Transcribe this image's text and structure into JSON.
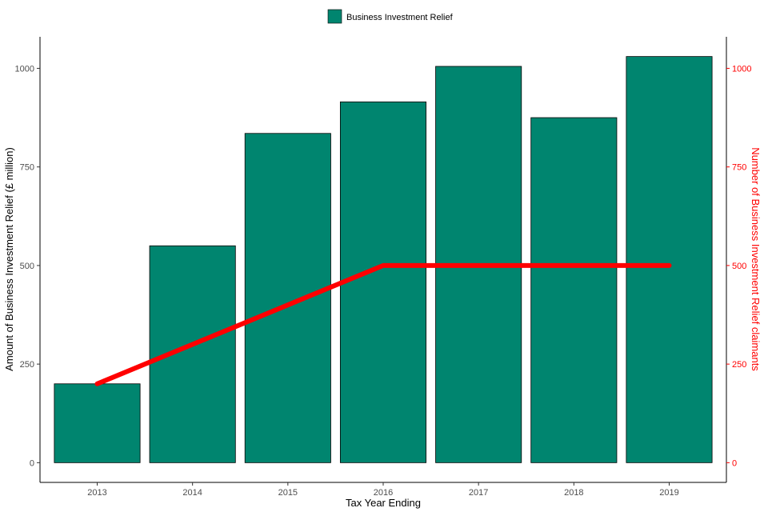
{
  "chart_data": {
    "type": "bar",
    "categories": [
      "2013",
      "2014",
      "2015",
      "2016",
      "2017",
      "2018",
      "2019"
    ],
    "series": [
      {
        "name": "Business Investment Relief",
        "type": "bar",
        "axis": "left",
        "values": [
          200,
          550,
          835,
          915,
          1005,
          875,
          1030
        ]
      },
      {
        "type": "line",
        "axis": "right",
        "values": [
          200,
          300,
          400,
          500,
          500,
          500,
          500
        ]
      }
    ],
    "xlabel": "Tax Year Ending",
    "ylabel": "Amount of Business Investment Relief (£ million)",
    "y2label": "Number of Business Investment Relief claimants",
    "ylim": [
      -50,
      1080
    ],
    "y2lim": [
      -50,
      1080
    ],
    "yticks": [
      "0",
      "250",
      "500",
      "750",
      "1000"
    ],
    "y2ticks": [
      "0",
      "250",
      "500",
      "750",
      "1000"
    ],
    "legend_position": "top-center",
    "grid": false,
    "colors": {
      "bar_fill": "#00856f",
      "bar_stroke": "#000000",
      "line": "#ff0000",
      "right_axis": "#ff0000"
    }
  }
}
